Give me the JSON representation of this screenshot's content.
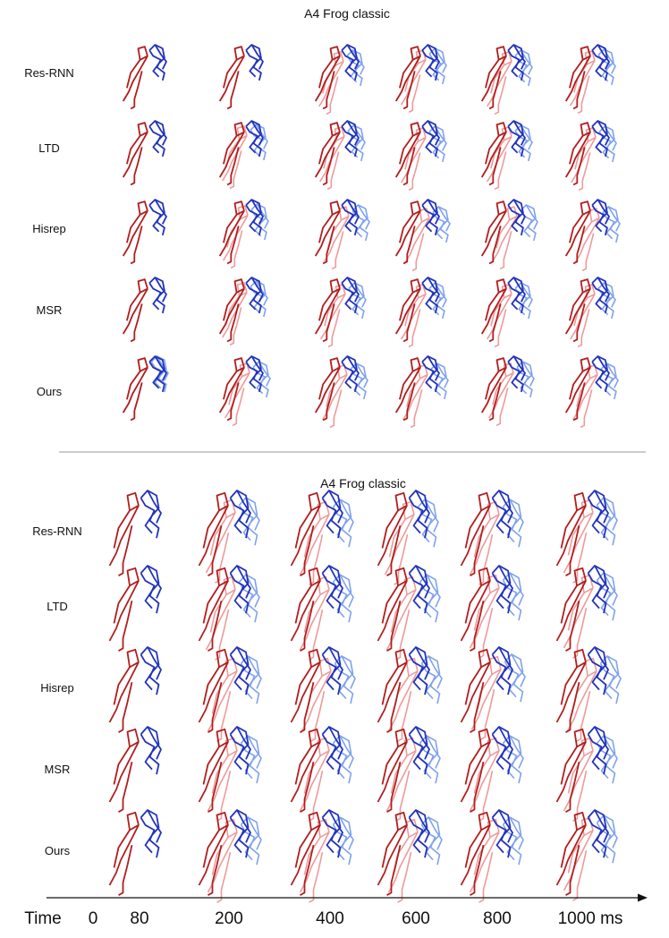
{
  "top_panel": {
    "title": "A4 Frog classic",
    "rows": [
      "Res-RNN",
      "LTD",
      "Hisrep",
      "MSR",
      "Ours"
    ]
  },
  "bottom_panel": {
    "title": "A4 Frog classic",
    "rows": [
      "Res-RNN",
      "LTD",
      "Hisrep",
      "MSR",
      "Ours"
    ]
  },
  "timeline": {
    "label": "Time",
    "ticks": [
      "0",
      "80",
      "200",
      "400",
      "600",
      "800",
      "1000 ms"
    ]
  },
  "colors": {
    "ground_truth": "#2233bb",
    "ground_truth_light": "#7fa2ee",
    "prediction": "#b21e1e",
    "prediction_light": "#ee9a9a",
    "divider": "#9a9a9a",
    "text": "#111111"
  }
}
